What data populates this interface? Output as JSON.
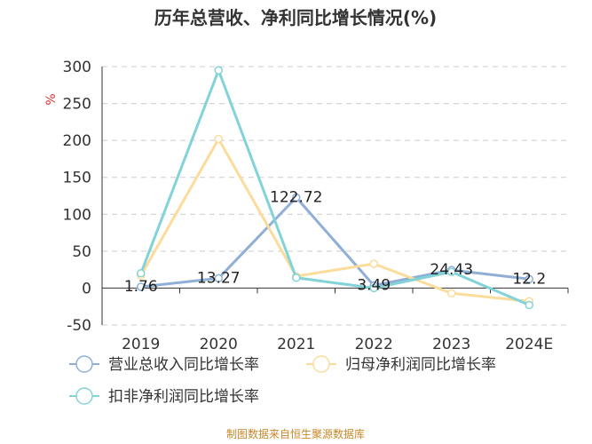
{
  "chart_data": {
    "type": "line",
    "title": "历年总营收、净利同比增长情况(%)",
    "ylabel": "%",
    "categories": [
      "2019",
      "2020",
      "2021",
      "2022",
      "2023",
      "2024E"
    ],
    "ylim": [
      -50,
      300
    ],
    "yticks": [
      "300",
      "250",
      "200",
      "150",
      "100",
      "50",
      "0",
      "-50"
    ],
    "series": [
      {
        "name": "营业总收入同比增长率",
        "color": "#8fafd6",
        "values": [
          1.76,
          13.27,
          122.72,
          3.49,
          24.43,
          12.2
        ],
        "labels": [
          "1.76",
          "13.27",
          "122.72",
          "3.49",
          "24.43",
          "12.2"
        ]
      },
      {
        "name": "归母净利润同比增长率",
        "color": "#fbdc9a",
        "values": [
          17,
          202,
          16,
          33,
          -7,
          -18
        ]
      },
      {
        "name": "扣非净利润同比增长率",
        "color": "#82d3d8",
        "values": [
          20,
          295,
          14,
          0,
          22,
          -23
        ]
      }
    ],
    "grid": true,
    "legend_position": "bottom"
  },
  "footer": {
    "source": "制图数据来自恒生聚源数据库"
  }
}
